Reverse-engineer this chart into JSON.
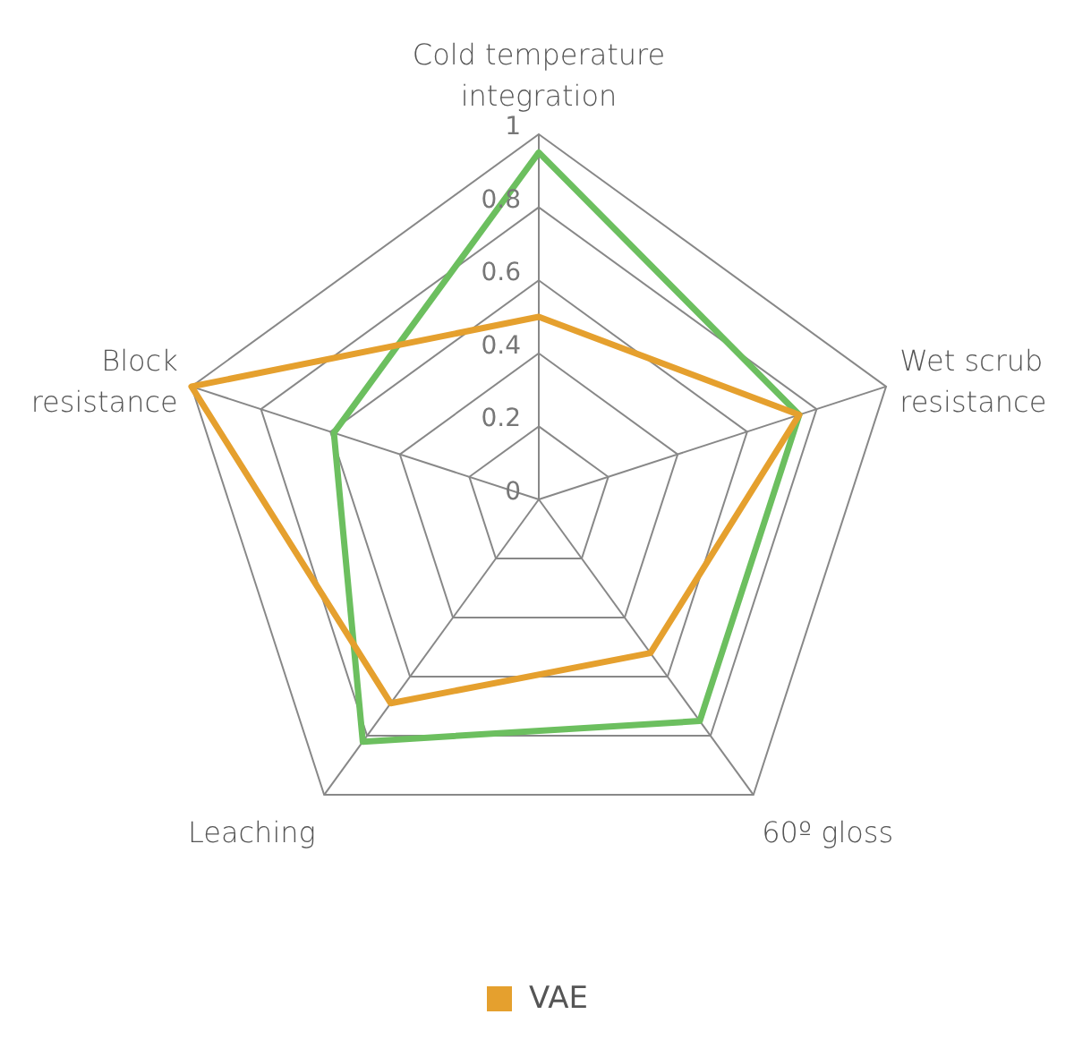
{
  "chart_data": {
    "type": "radar",
    "categories": [
      "Cold temperature\nintegration",
      "Wet scrub\nresistance",
      "60º gloss",
      "Leaching",
      "Block\nresistance"
    ],
    "series": [
      {
        "color": "#6cbf5f",
        "values": [
          0.95,
          0.75,
          0.75,
          0.82,
          0.59
        ]
      },
      {
        "name": "VAE",
        "color": "#e5a02e",
        "values": [
          0.5,
          0.75,
          0.52,
          0.69,
          1.0
        ]
      }
    ],
    "ylim": [
      0,
      1
    ],
    "yticks": [
      0,
      0.2,
      0.4,
      0.6,
      0.8,
      1
    ],
    "grid": true,
    "legend": "bottom"
  }
}
